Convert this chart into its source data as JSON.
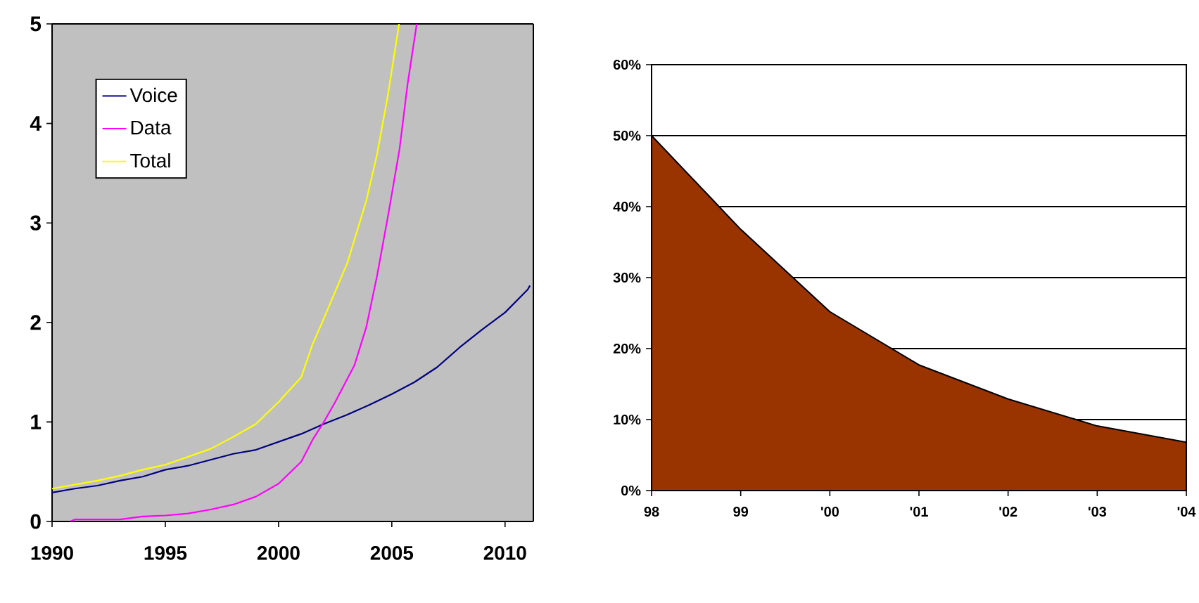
{
  "chart_data": [
    {
      "type": "line",
      "xlim": [
        1990,
        2011.25
      ],
      "ylim": [
        0,
        5
      ],
      "xticks": [
        1990,
        1995,
        2000,
        2005,
        2010
      ],
      "yticks": [
        0,
        1,
        2,
        3,
        4,
        5
      ],
      "legend": "top left",
      "grid": false,
      "series": [
        {
          "name": "Voice",
          "color": "#000080",
          "x": [
            1990,
            1991,
            1992,
            1993,
            1994,
            1995,
            1996,
            1997,
            1998,
            1999,
            2000,
            2001,
            2002,
            2003,
            2004,
            2005,
            2006,
            2007,
            2008,
            2009,
            2010,
            2011,
            2011.1
          ],
          "values": [
            0.29,
            0.33,
            0.36,
            0.41,
            0.45,
            0.52,
            0.56,
            0.62,
            0.68,
            0.72,
            0.8,
            0.88,
            0.98,
            1.07,
            1.17,
            1.28,
            1.4,
            1.55,
            1.75,
            1.93,
            2.1,
            2.33,
            2.37
          ]
        },
        {
          "name": "Data",
          "color": "#ff00ff",
          "x": [
            1990.8,
            1991,
            1993,
            1994,
            1995,
            1996,
            1997,
            1998,
            1999,
            2000,
            2001,
            2001.5,
            2002,
            2002.5,
            2003.35,
            2003.87,
            2004.35,
            2004.84,
            2005.34,
            2005.7,
            2006.1
          ],
          "values": [
            0,
            0.02,
            0.02,
            0.05,
            0.06,
            0.08,
            0.12,
            0.17,
            0.25,
            0.38,
            0.6,
            0.82,
            1.0,
            1.2,
            1.57,
            1.95,
            2.47,
            3.08,
            3.74,
            4.4,
            5.0
          ]
        },
        {
          "name": "Total",
          "color": "#ffff00",
          "x": [
            1990,
            1991,
            1992,
            1993,
            1994,
            1995,
            1996,
            1997,
            1998,
            1999,
            2000,
            2001,
            2001.5,
            2002,
            2003.04,
            2003.87,
            2004.35,
            2004.84,
            2005.32
          ],
          "values": [
            0.33,
            0.37,
            0.41,
            0.46,
            0.52,
            0.57,
            0.65,
            0.73,
            0.85,
            0.98,
            1.2,
            1.45,
            1.78,
            2.04,
            2.6,
            3.22,
            3.69,
            4.3,
            5.0
          ]
        }
      ]
    },
    {
      "type": "area",
      "categories": [
        "98",
        "99",
        "'00",
        "'01",
        "'02",
        "'03",
        "'04"
      ],
      "values": [
        50,
        36.8,
        25.2,
        17.7,
        12.9,
        9.1,
        6.8
      ],
      "color": "#993300",
      "ylim": [
        0,
        60
      ],
      "grid": "y",
      "yticks": [
        {
          "value": 0,
          "label": "0%"
        },
        {
          "value": 10,
          "label": "10%"
        },
        {
          "value": 20,
          "label": "20%"
        },
        {
          "value": 30,
          "label": "30%"
        },
        {
          "value": 40,
          "label": "40%"
        },
        {
          "value": 50,
          "label": "50%"
        },
        {
          "value": 60,
          "label": "60%"
        }
      ]
    }
  ]
}
